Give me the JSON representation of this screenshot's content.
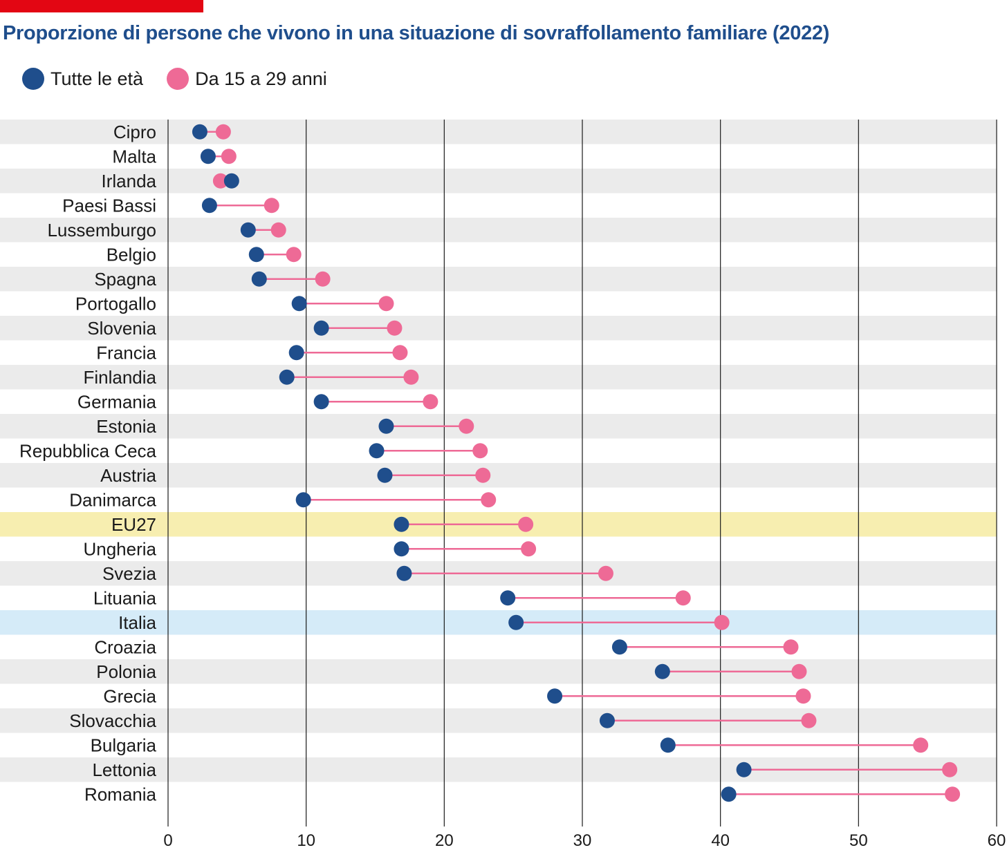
{
  "header": {
    "accent_color": "#e30613",
    "title": "Proporzione di persone che vivono in una situazione di sovraffollamento familiare (2022)"
  },
  "legend": {
    "items": [
      {
        "label": "Tutte le età",
        "color": "#1f4e8c"
      },
      {
        "label": "Da 15 a 29 anni",
        "color": "#ee6a96"
      }
    ]
  },
  "chart_data": {
    "type": "dumbbell",
    "title": "Proporzione di persone che vivono in una situazione di sovraffollamento familiare (2022)",
    "xlabel": "",
    "ylabel": "",
    "xlim": [
      0,
      60
    ],
    "xticks": [
      0,
      10,
      20,
      30,
      40,
      50,
      60
    ],
    "grid": "vertical",
    "legend_position": "top-left",
    "categories": [
      "Cipro",
      "Malta",
      "Irlanda",
      "Paesi Bassi",
      "Lussemburgo",
      "Belgio",
      "Spagna",
      "Portogallo",
      "Slovenia",
      "Francia",
      "Finlandia",
      "Germania",
      "Estonia",
      "Repubblica Ceca",
      "Austria",
      "Danimarca",
      "EU27",
      "Ungheria",
      "Svezia",
      "Lituania",
      "Italia",
      "Croazia",
      "Polonia",
      "Grecia",
      "Slovacchia",
      "Bulgaria",
      "Lettonia",
      "Romania"
    ],
    "series": [
      {
        "name": "Tutte le età",
        "color": "#1f4e8c",
        "values": [
          2.3,
          2.9,
          4.6,
          3.0,
          5.8,
          6.4,
          6.6,
          9.5,
          11.1,
          9.3,
          8.6,
          11.1,
          15.8,
          15.1,
          15.7,
          9.8,
          16.9,
          16.9,
          17.1,
          24.6,
          25.2,
          32.7,
          35.8,
          28.0,
          31.8,
          36.2,
          41.7,
          40.6
        ]
      },
      {
        "name": "Da 15 a 29 anni",
        "color": "#ee6a96",
        "values": [
          4.0,
          4.4,
          3.8,
          7.5,
          8.0,
          9.1,
          11.2,
          15.8,
          16.4,
          16.8,
          17.6,
          19.0,
          21.6,
          22.6,
          22.8,
          23.2,
          25.9,
          26.1,
          31.7,
          37.3,
          40.1,
          45.1,
          45.7,
          46.0,
          46.4,
          54.5,
          56.6,
          56.8
        ]
      }
    ],
    "highlights": [
      {
        "category": "EU27",
        "color": "#f7eeb0"
      },
      {
        "category": "Italia",
        "color": "#d5ebf8"
      }
    ],
    "band_colors": [
      "#ebebeb",
      "#ffffff"
    ],
    "connector_color": "#ee6a96"
  }
}
